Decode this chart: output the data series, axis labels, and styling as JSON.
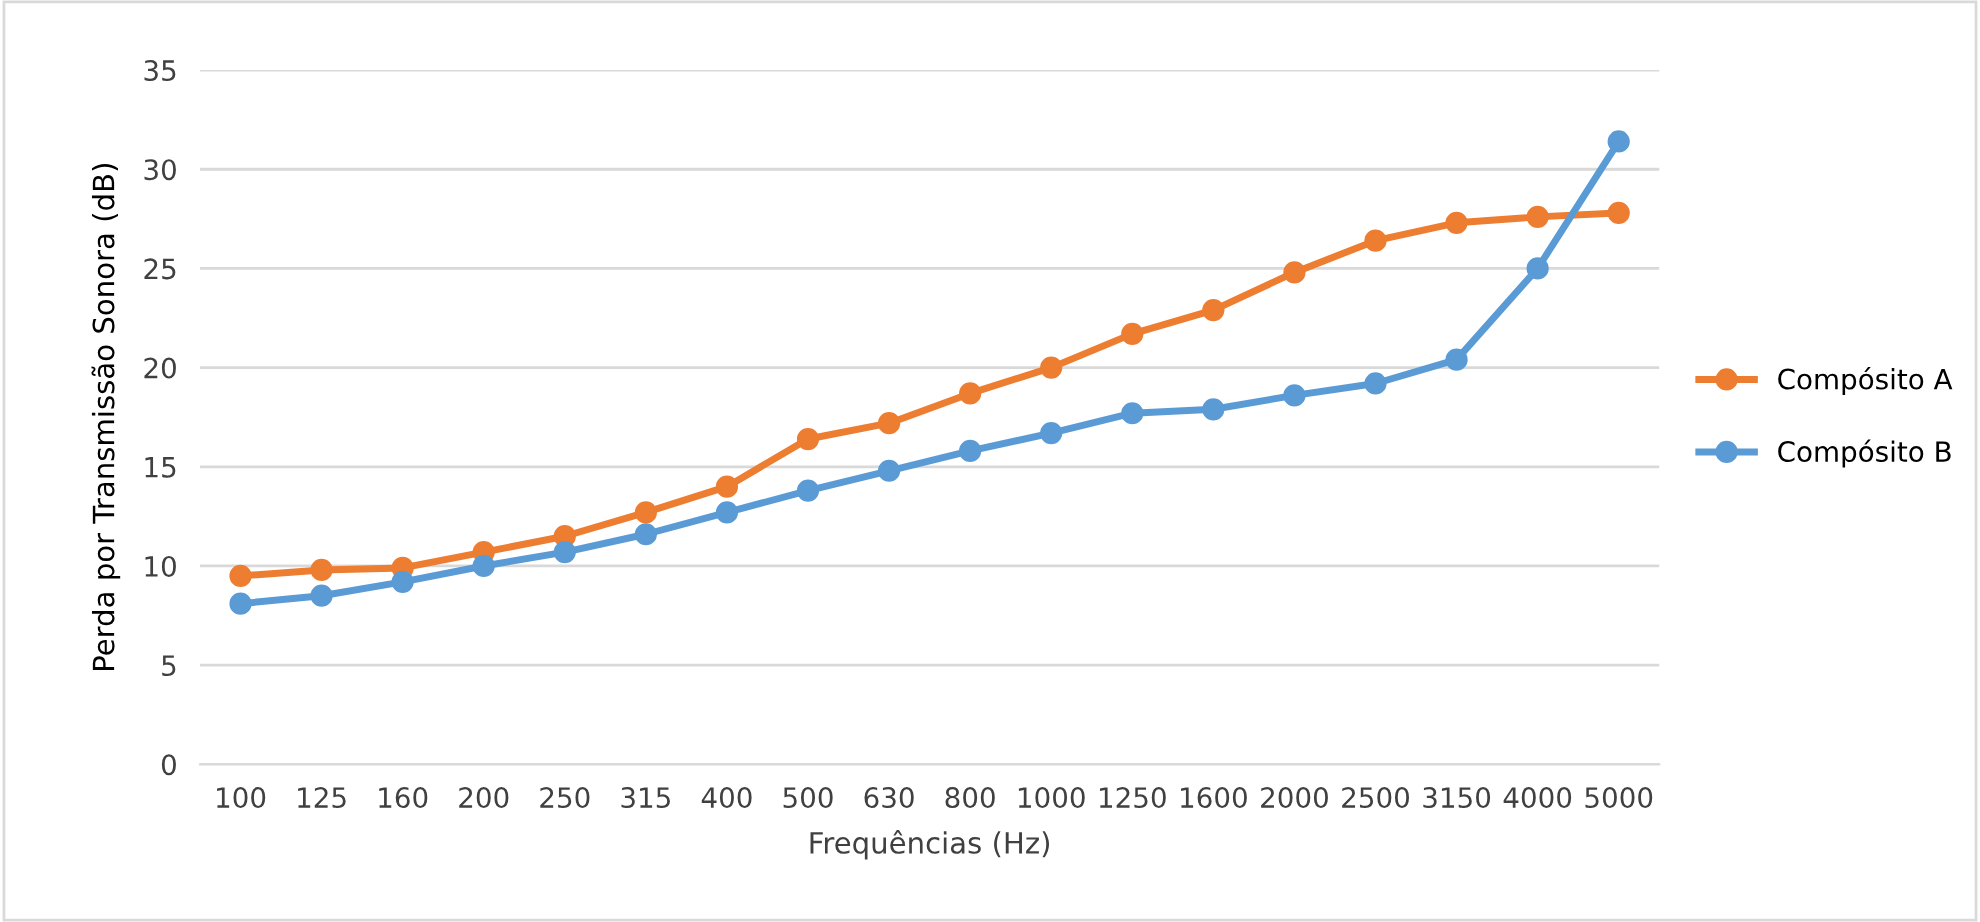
{
  "chart_data": {
    "type": "line",
    "xlabel": "Frequências (Hz)",
    "ylabel": "Perda por Transmissão Sonora (dB)",
    "categories": [
      "100",
      "125",
      "160",
      "200",
      "250",
      "315",
      "400",
      "500",
      "630",
      "800",
      "1000",
      "1250",
      "1600",
      "2000",
      "2500",
      "3150",
      "4000",
      "5000"
    ],
    "series": [
      {
        "name": "Compósito A",
        "color": "#ed7d31",
        "values": [
          9.5,
          9.8,
          9.9,
          10.7,
          11.5,
          12.7,
          14.0,
          16.4,
          17.2,
          18.7,
          20.0,
          21.7,
          22.9,
          24.8,
          26.4,
          27.3,
          27.6,
          27.8
        ]
      },
      {
        "name": "Compósito B",
        "color": "#5b9bd5",
        "values": [
          8.1,
          8.5,
          9.2,
          10.0,
          10.7,
          11.6,
          12.7,
          13.8,
          14.8,
          15.8,
          16.7,
          17.7,
          17.9,
          18.6,
          19.2,
          20.4,
          25.0,
          31.4
        ]
      }
    ],
    "ylim": [
      0,
      35
    ],
    "yticks": [
      0,
      5,
      10,
      15,
      20,
      25,
      30,
      35
    ],
    "grid": "y",
    "legend": "right",
    "marker": "circle",
    "line_style": "solid"
  }
}
